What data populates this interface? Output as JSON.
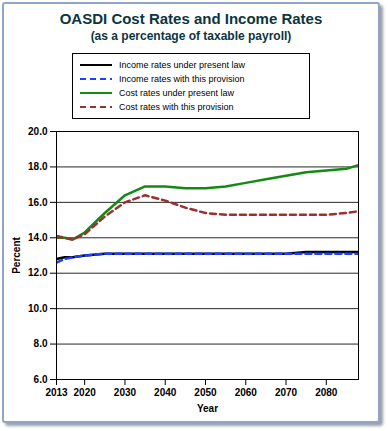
{
  "chart_data": {
    "type": "line",
    "title": "OASDI Cost Rates and Income Rates",
    "subtitle": "(as a percentage of taxable payroll)",
    "x_label": "Year",
    "y_label": "Percent",
    "x": [
      2013,
      2015,
      2017,
      2020,
      2025,
      2030,
      2035,
      2040,
      2045,
      2050,
      2055,
      2060,
      2065,
      2070,
      2075,
      2080,
      2085,
      2088
    ],
    "series": [
      {
        "name": "Income rates under present law",
        "color": "#000000",
        "line_style": "solid",
        "values": [
          12.8,
          12.9,
          12.9,
          13.0,
          13.1,
          13.1,
          13.1,
          13.1,
          13.1,
          13.1,
          13.1,
          13.1,
          13.1,
          13.1,
          13.2,
          13.2,
          13.2,
          13.2
        ]
      },
      {
        "name": "Income rates with this provision",
        "color": "#1f3fff",
        "line_style": "dashed",
        "values": [
          12.6,
          12.8,
          12.9,
          13.0,
          13.1,
          13.1,
          13.1,
          13.1,
          13.1,
          13.1,
          13.1,
          13.1,
          13.1,
          13.1,
          13.1,
          13.1,
          13.1,
          13.1
        ]
      },
      {
        "name": "Cost rates under present law",
        "color": "#138a13",
        "line_style": "solid",
        "values": [
          14.0,
          14.0,
          13.9,
          14.3,
          15.4,
          16.4,
          16.9,
          16.9,
          16.8,
          16.8,
          16.9,
          17.1,
          17.3,
          17.5,
          17.7,
          17.8,
          17.9,
          18.1
        ]
      },
      {
        "name": "Cost rates with this provision",
        "color": "#9b3030",
        "line_style": "dashed",
        "values": [
          14.1,
          14.0,
          13.9,
          14.2,
          15.2,
          16.0,
          16.4,
          16.1,
          15.7,
          15.4,
          15.3,
          15.3,
          15.3,
          15.3,
          15.3,
          15.3,
          15.4,
          15.5
        ]
      }
    ],
    "xlim": [
      2013,
      2088
    ],
    "xticks": [
      2013,
      2020,
      2030,
      2040,
      2050,
      2060,
      2070,
      2080
    ],
    "ylim": [
      6,
      20
    ],
    "yticks": [
      {
        "value": 6,
        "label": "6.0"
      },
      {
        "value": 8,
        "label": "8.0"
      },
      {
        "value": 10,
        "label": "10.0"
      },
      {
        "value": 12,
        "label": "12.0"
      },
      {
        "value": 14,
        "label": "14.0"
      },
      {
        "value": 16,
        "label": "16.0"
      },
      {
        "value": 18,
        "label": "18.0"
      },
      {
        "value": 20,
        "label": "20.0"
      }
    ],
    "grid": true,
    "legend": "top"
  }
}
